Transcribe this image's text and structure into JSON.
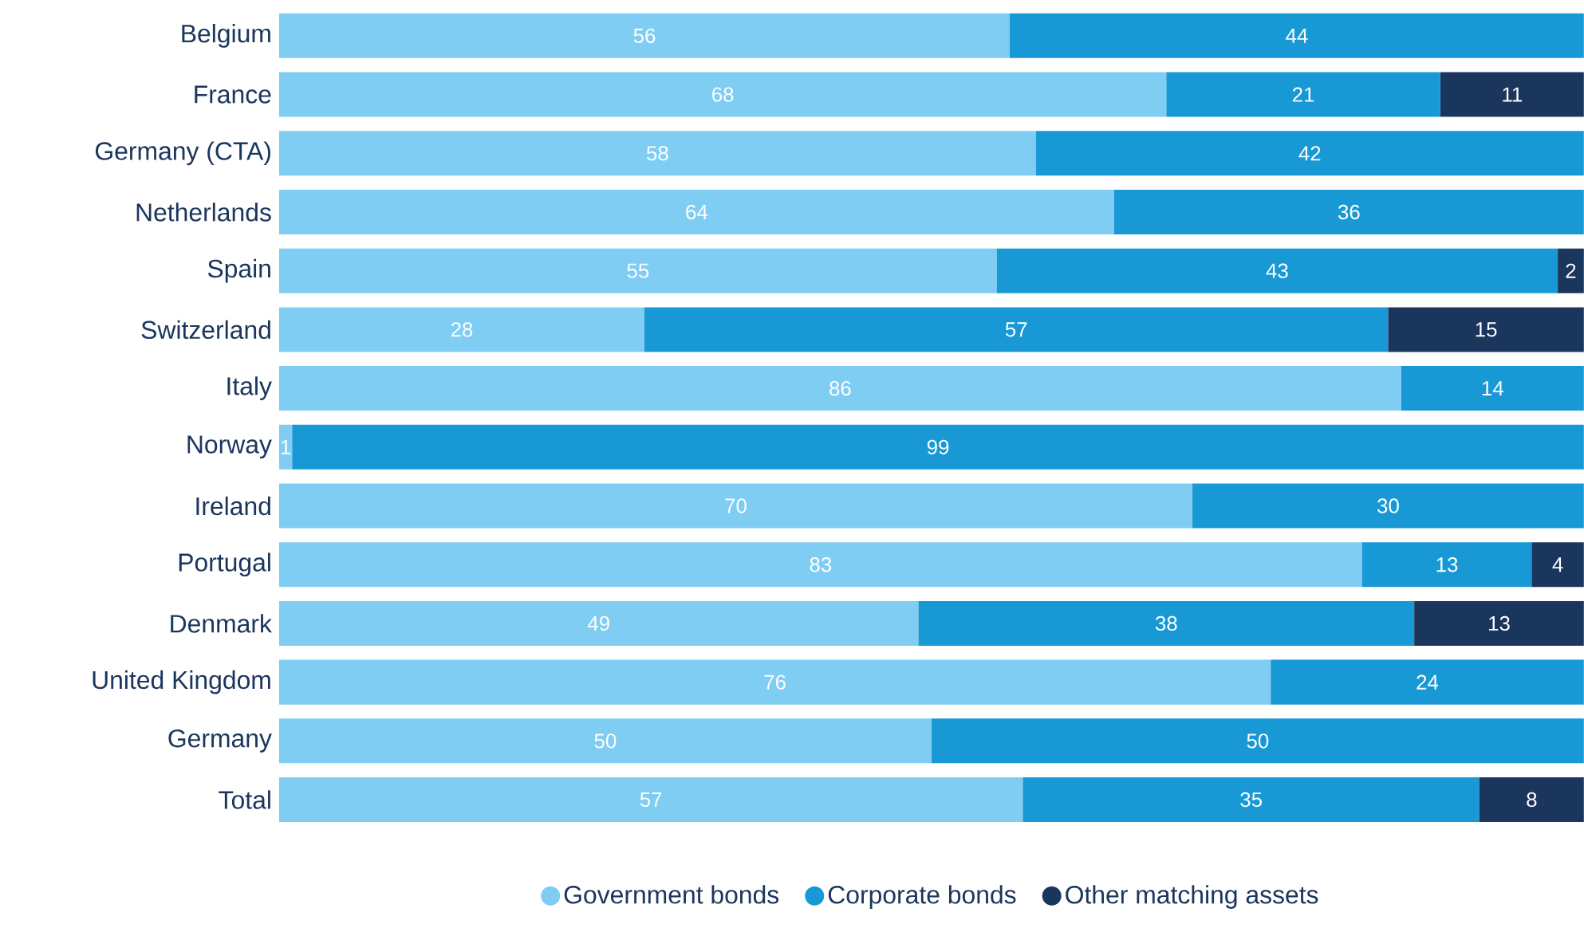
{
  "chart_data": {
    "type": "bar",
    "orientation": "horizontal",
    "stacked": true,
    "data_labels": true,
    "legend": "bottom",
    "tick_labels": "y",
    "xlim": [
      0,
      100
    ],
    "categories": [
      "Belgium",
      "France",
      "Germany (CTA)",
      "Netherlands",
      "Spain",
      "Switzerland",
      "Italy",
      "Norway",
      "Ireland",
      "Portugal",
      "Denmark",
      "United Kingdom",
      "Germany",
      "Total"
    ],
    "series": [
      {
        "name": "Government bonds",
        "color": "#7fcdf3",
        "values": [
          56,
          68,
          58,
          64,
          55,
          28,
          86,
          1,
          70,
          83,
          49,
          76,
          50,
          57
        ]
      },
      {
        "name": "Corporate bonds",
        "color": "#1899d6",
        "values": [
          44,
          21,
          42,
          36,
          43,
          57,
          14,
          99,
          30,
          13,
          38,
          24,
          50,
          35
        ]
      },
      {
        "name": "Other matching assets",
        "color": "#1b365d",
        "values": [
          null,
          11,
          null,
          null,
          2,
          15,
          null,
          null,
          null,
          4,
          13,
          null,
          null,
          8
        ]
      }
    ]
  }
}
